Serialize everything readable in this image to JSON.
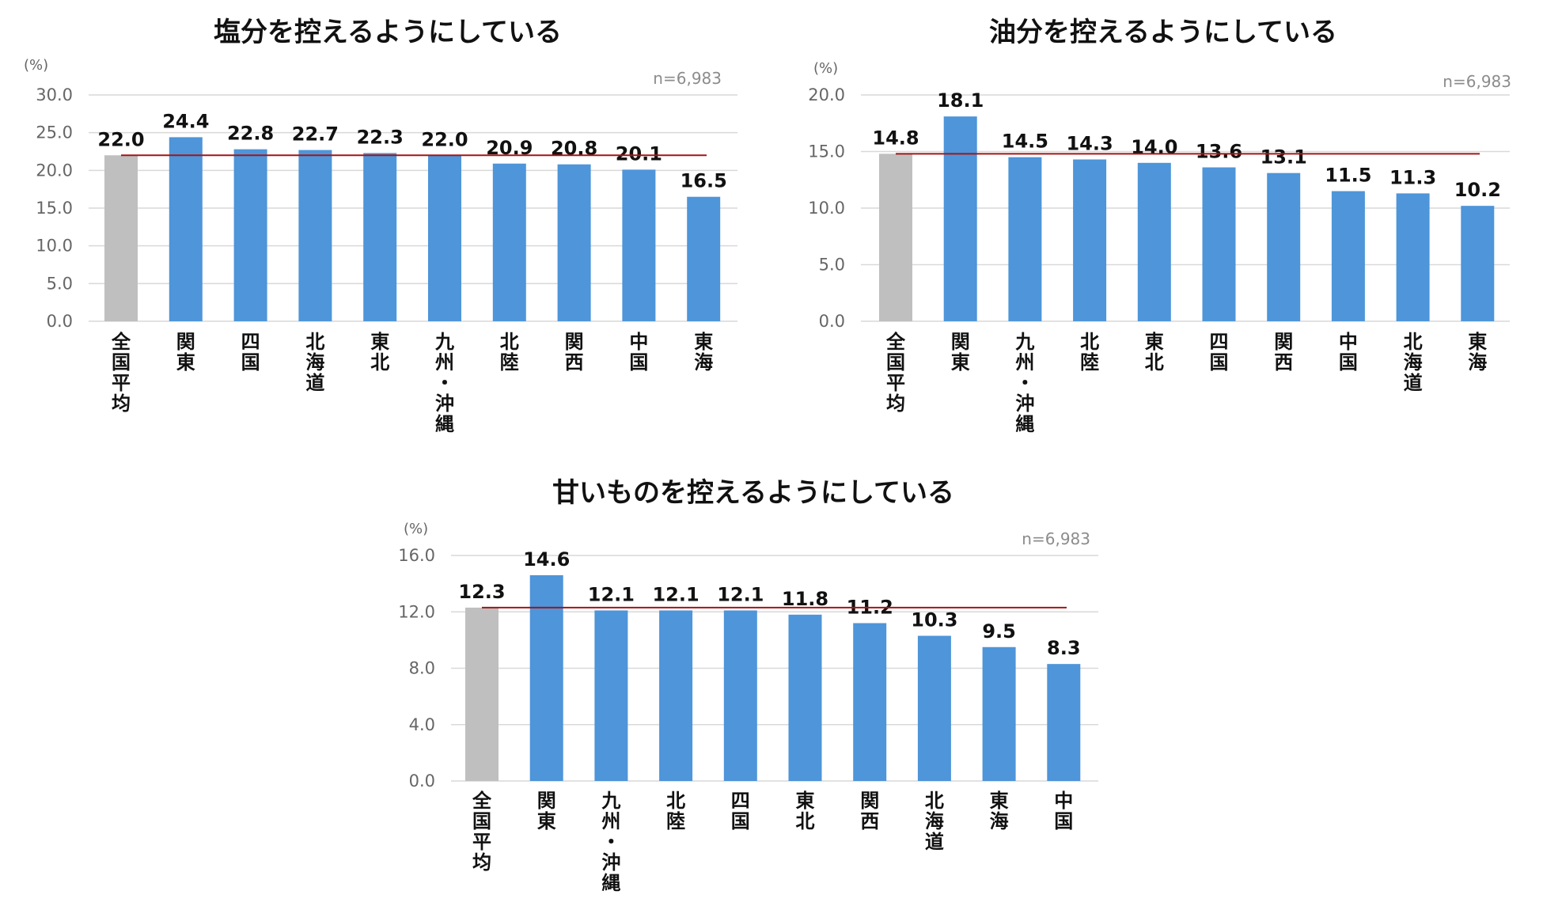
{
  "colors": {
    "bar": "#4e95d9",
    "average_bar": "#bfbfbf",
    "average_line": "#a31515",
    "grid": "#d9d9d9"
  },
  "chart_data": [
    {
      "type": "bar",
      "title": "塩分を控えるようにしている",
      "unit": "(%)",
      "sample_note": "n=6,983",
      "categories": [
        "全国平均",
        "関東",
        "四国",
        "北海道",
        "東北",
        "九州・沖縄",
        "北陸",
        "関西",
        "中国",
        "東海"
      ],
      "values": [
        22.0,
        24.4,
        22.8,
        22.7,
        22.3,
        22.0,
        20.9,
        20.8,
        20.1,
        16.5
      ],
      "ylim": [
        0,
        30
      ],
      "yticks": [
        "0.0",
        "5.0",
        "10.0",
        "15.0",
        "20.0",
        "25.0",
        "30.0"
      ],
      "average_value": 22.0,
      "grid": true
    },
    {
      "type": "bar",
      "title": "油分を控えるようにしている",
      "unit": "(%)",
      "sample_note": "n=6,983",
      "categories": [
        "全国平均",
        "関東",
        "九州・沖縄",
        "北陸",
        "東北",
        "四国",
        "関西",
        "中国",
        "北海道",
        "東海"
      ],
      "values": [
        14.8,
        18.1,
        14.5,
        14.3,
        14.0,
        13.6,
        13.1,
        11.5,
        11.3,
        10.2
      ],
      "ylim": [
        0,
        20
      ],
      "yticks": [
        "0.0",
        "5.0",
        "10.0",
        "15.0",
        "20.0"
      ],
      "average_value": 14.8,
      "grid": true
    },
    {
      "type": "bar",
      "title": "甘いものを控えるようにしている",
      "unit": "(%)",
      "sample_note": "n=6,983",
      "categories": [
        "全国平均",
        "関東",
        "九州・沖縄",
        "北陸",
        "四国",
        "東北",
        "関西",
        "北海道",
        "東海",
        "中国"
      ],
      "values": [
        12.3,
        14.6,
        12.1,
        12.1,
        12.1,
        11.8,
        11.2,
        10.3,
        9.5,
        8.3
      ],
      "ylim": [
        0,
        16
      ],
      "yticks": [
        "0.0",
        "4.0",
        "8.0",
        "12.0",
        "16.0"
      ],
      "average_value": 12.3,
      "grid": true
    }
  ]
}
